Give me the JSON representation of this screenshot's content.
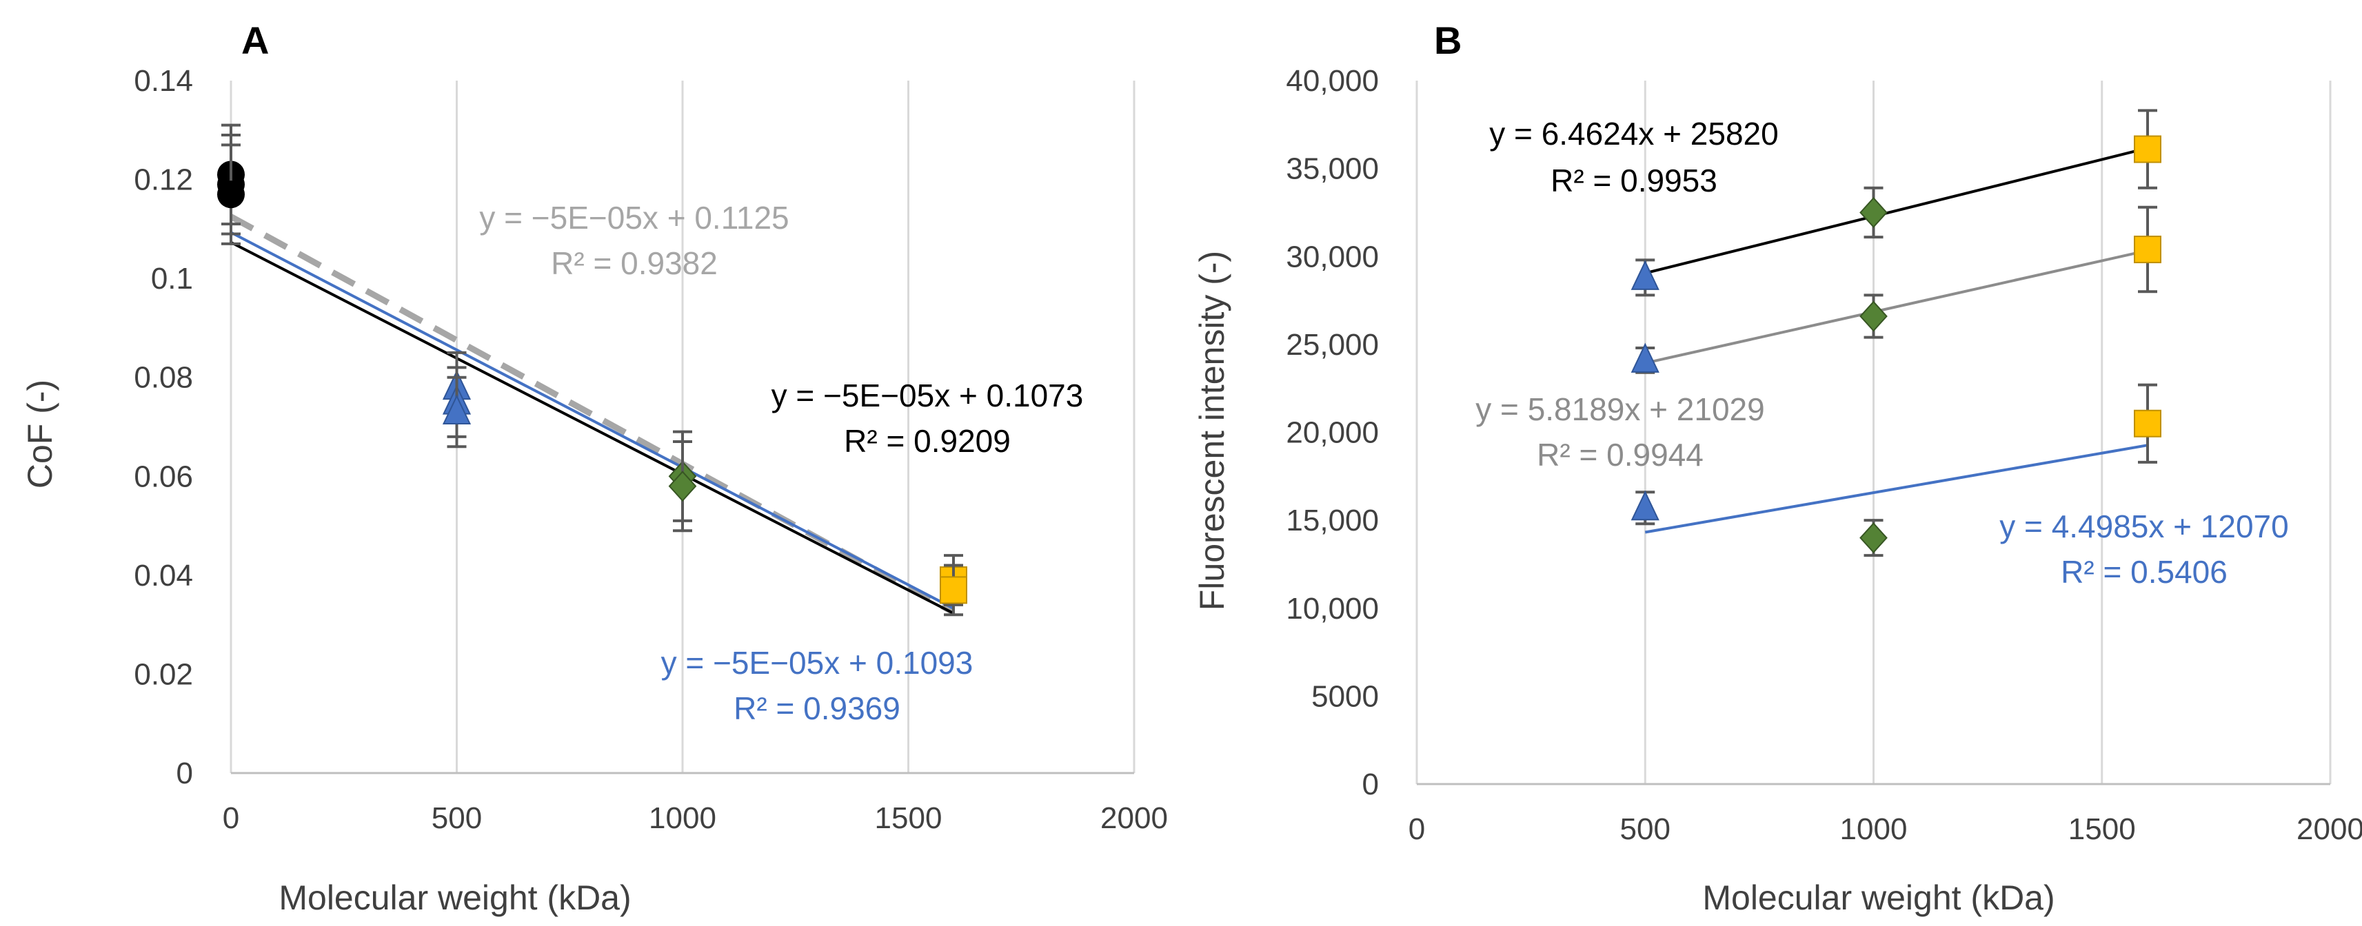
{
  "chart_data": [
    {
      "panel": "A",
      "type": "scatter",
      "title": "",
      "xlabel": "Molecular weight (kDa)",
      "ylabel": "CoF (-)",
      "xlim": [
        0,
        2000
      ],
      "ylim": [
        0,
        0.14
      ],
      "xticks": [
        0,
        500,
        1000,
        1500,
        2000
      ],
      "xtick_labels": [
        "0",
        "500",
        "1000",
        "1500",
        "2000"
      ],
      "yticks": [
        0,
        0.02,
        0.04,
        0.06,
        0.08,
        0.1,
        0.12,
        0.14
      ],
      "ytick_labels": [
        "0",
        "0.02",
        "0.04",
        "0.06",
        "0.08",
        "0.1",
        "0.12",
        "0.14"
      ],
      "grid": "vertical",
      "points": [
        {
          "x": 0,
          "y": 0.121,
          "err": 0.01,
          "marker": "circle",
          "color": "#000000"
        },
        {
          "x": 0,
          "y": 0.119,
          "err": 0.01,
          "marker": "circle",
          "color": "#000000"
        },
        {
          "x": 0,
          "y": 0.117,
          "err": 0.01,
          "marker": "circle",
          "color": "#000000"
        },
        {
          "x": 500,
          "y": 0.078,
          "err": 0.007,
          "marker": "triangle",
          "color": "#4472C4"
        },
        {
          "x": 500,
          "y": 0.075,
          "err": 0.007,
          "marker": "triangle",
          "color": "#4472C4"
        },
        {
          "x": 500,
          "y": 0.073,
          "err": 0.007,
          "marker": "triangle",
          "color": "#4472C4"
        },
        {
          "x": 1000,
          "y": 0.06,
          "err": 0.009,
          "marker": "diamond",
          "color": "#548235"
        },
        {
          "x": 1000,
          "y": 0.058,
          "err": 0.009,
          "marker": "diamond",
          "color": "#548235"
        },
        {
          "x": 1600,
          "y": 0.039,
          "err": 0.005,
          "marker": "square",
          "color": "#FFC000"
        },
        {
          "x": 1600,
          "y": 0.037,
          "err": 0.005,
          "marker": "square",
          "color": "#FFC000"
        }
      ],
      "trendlines": [
        {
          "name": "gray",
          "x": [
            0,
            1600
          ],
          "y": [
            0.1125,
            0.0325
          ],
          "color": "#A6A6A6",
          "dashed": true,
          "equation": "y = −5E−05x + 0.1125",
          "r2": "R² = 0.9382"
        },
        {
          "name": "black",
          "x": [
            0,
            1600
          ],
          "y": [
            0.1073,
            0.0323
          ],
          "color": "#000000",
          "dashed": false,
          "equation": "y = −5E−05x + 0.1073",
          "r2": "R² = 0.9209"
        },
        {
          "name": "blue",
          "x": [
            0,
            1600
          ],
          "y": [
            0.1093,
            0.0333
          ],
          "color": "#4472C4",
          "dashed": false,
          "equation": "y = −5E−05x + 0.1093",
          "r2": "R² = 0.9369"
        }
      ]
    },
    {
      "panel": "B",
      "type": "scatter",
      "title": "",
      "xlabel": "Molecular weight (kDa)",
      "ylabel": "Fluorescent intensity (-)",
      "xlim": [
        0,
        2000
      ],
      "ylim": [
        0,
        40000
      ],
      "xticks": [
        0,
        500,
        1000,
        1500,
        2000
      ],
      "xtick_labels": [
        "0",
        "500",
        "1000",
        "1500",
        "2000"
      ],
      "yticks": [
        0,
        5000,
        10000,
        15000,
        20000,
        25000,
        30000,
        35000,
        40000
      ],
      "ytick_labels": [
        "0",
        "5000",
        "10,000",
        "15,000",
        "20,000",
        "25,000",
        "30,000",
        "35,000",
        "40,000"
      ],
      "grid": "vertical",
      "points": [
        {
          "x": 500,
          "y": 28800,
          "err": 1000,
          "marker": "triangle",
          "color": "#4472C4"
        },
        {
          "x": 1000,
          "y": 32500,
          "err": 1400,
          "marker": "diamond",
          "color": "#548235"
        },
        {
          "x": 1600,
          "y": 36100,
          "err": 2200,
          "marker": "square",
          "color": "#FFC000"
        },
        {
          "x": 500,
          "y": 24100,
          "err": 700,
          "marker": "triangle",
          "color": "#4472C4"
        },
        {
          "x": 1000,
          "y": 26600,
          "err": 1200,
          "marker": "diamond",
          "color": "#548235"
        },
        {
          "x": 1600,
          "y": 30400,
          "err": 2400,
          "marker": "square",
          "color": "#FFC000"
        },
        {
          "x": 500,
          "y": 15700,
          "err": 900,
          "marker": "triangle",
          "color": "#4472C4"
        },
        {
          "x": 1000,
          "y": 14000,
          "err": 1000,
          "marker": "diamond",
          "color": "#548235"
        },
        {
          "x": 1600,
          "y": 20500,
          "err": 2200,
          "marker": "square",
          "color": "#FFC000"
        }
      ],
      "trendlines": [
        {
          "name": "black",
          "x": [
            500,
            1600
          ],
          "y": [
            29051,
            36162
          ],
          "color": "#000000",
          "dashed": false,
          "equation": "y = 6.4624x + 25820",
          "r2": "R² = 0.9953"
        },
        {
          "name": "gray",
          "x": [
            500,
            1600
          ],
          "y": [
            23938,
            30339
          ],
          "color": "#8C8C8C",
          "dashed": false,
          "equation": "y = 5.8189x + 21029",
          "r2": "R² = 0.9944"
        },
        {
          "name": "blue",
          "x": [
            500,
            1600
          ],
          "y": [
            14319,
            19268
          ],
          "color": "#4472C4",
          "dashed": false,
          "equation": "y = 4.4985x + 12070",
          "r2": "R² = 0.5406"
        }
      ]
    }
  ]
}
